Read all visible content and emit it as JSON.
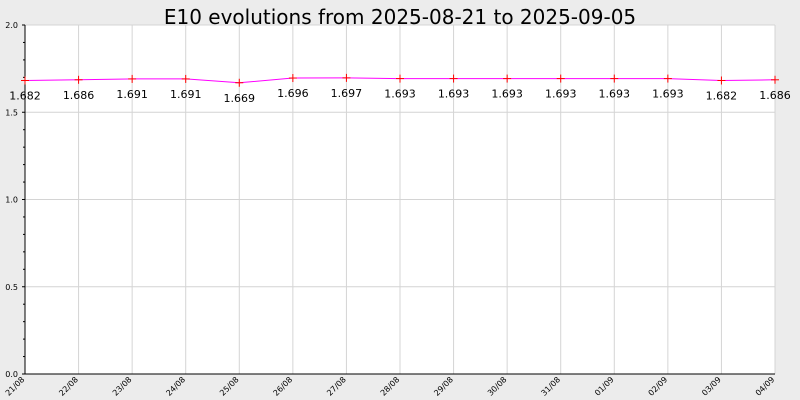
{
  "chart_data": {
    "type": "line",
    "title": "E10 evolutions from 2025-08-21 to 2025-09-05",
    "xlabel": "",
    "ylabel": "",
    "ylim": [
      0,
      2.0
    ],
    "yticks": [
      "0.0",
      "0.5",
      "1.0",
      "1.5",
      "2.0"
    ],
    "categories": [
      "21/08",
      "22/08",
      "23/08",
      "24/08",
      "25/08",
      "26/08",
      "27/08",
      "28/08",
      "29/08",
      "30/08",
      "31/08",
      "01/09",
      "02/09",
      "03/09",
      "04/09"
    ],
    "series": [
      {
        "values": [
          1.682,
          1.686,
          1.691,
          1.691,
          1.669,
          1.696,
          1.697,
          1.693,
          1.693,
          1.693,
          1.693,
          1.693,
          1.693,
          1.682,
          1.686
        ],
        "labels": [
          "1.682",
          "1.686",
          "1.691",
          "1.691",
          "1.669",
          "1.696",
          "1.697",
          "1.693",
          "1.693",
          "1.693",
          "1.693",
          "1.693",
          "1.693",
          "1.682",
          "1.686"
        ],
        "line_color": "#ff00ff",
        "marker_color": "#ff0000"
      }
    ],
    "grid": true,
    "background": "#ffffff"
  }
}
